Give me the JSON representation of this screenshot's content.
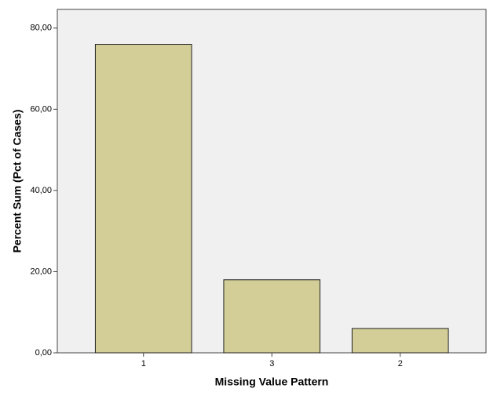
{
  "chart_data": {
    "type": "bar",
    "x_label": "Missing Value Pattern",
    "y_label": "Percent Sum (Pct of Cases)",
    "categories": [
      "1",
      "3",
      "2"
    ],
    "values": [
      76,
      18,
      6
    ],
    "color": "#d3ce97",
    "ylim": [
      0,
      84.6
    ],
    "yticks": [
      {
        "value": 0,
        "label": "0,00"
      },
      {
        "value": 20,
        "label": "20,00"
      },
      {
        "value": 40,
        "label": "40,00"
      },
      {
        "value": 60,
        "label": "60,00"
      },
      {
        "value": 80,
        "label": "80,00"
      }
    ],
    "grid": false
  }
}
